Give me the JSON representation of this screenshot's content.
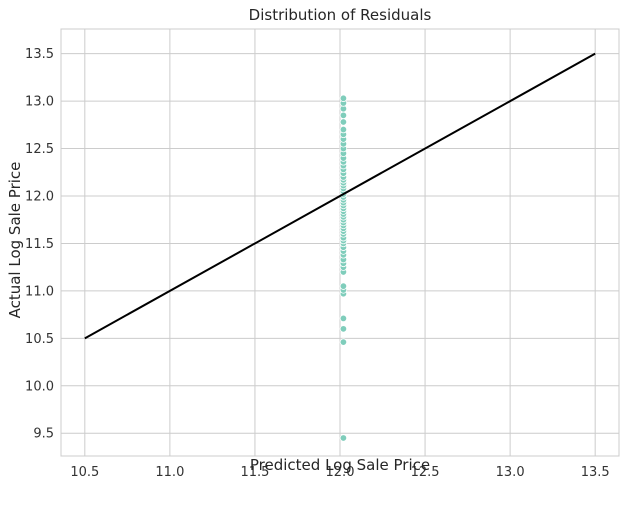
{
  "chart_data": {
    "type": "scatter",
    "title": "Distribution of Residuals",
    "xlabel": "Predicted Log Sale Price",
    "ylabel": "Actual Log Sale Price",
    "xlim": [
      10.36,
      13.64
    ],
    "ylim": [
      9.26,
      13.76
    ],
    "xticks": [
      "10.5",
      "11.0",
      "11.5",
      "12.0",
      "12.5",
      "13.0",
      "13.5"
    ],
    "yticks": [
      "9.5",
      "10.0",
      "10.5",
      "11.0",
      "11.5",
      "12.0",
      "12.5",
      "13.0",
      "13.5"
    ],
    "grid": true,
    "series": [
      {
        "type": "scatter",
        "color": "#7fcdbb",
        "x": [
          12.02,
          12.02,
          12.02,
          12.02,
          12.02,
          12.02,
          12.02,
          12.02,
          12.02,
          12.02,
          12.02,
          12.02,
          12.02,
          12.02,
          12.02,
          12.02,
          12.02,
          12.02,
          12.02,
          12.02,
          12.02,
          12.02,
          12.02,
          12.02,
          12.02,
          12.02,
          12.02,
          12.02,
          12.02,
          12.02,
          12.02,
          12.02,
          12.02,
          12.02,
          12.02,
          12.02,
          12.02,
          12.02,
          12.02,
          12.02,
          12.02,
          12.02,
          12.02,
          12.02,
          12.02,
          12.02,
          12.02,
          12.02,
          12.02,
          12.02,
          12.02,
          12.02,
          12.02,
          12.02
        ],
        "y": [
          9.45,
          10.46,
          10.6,
          10.71,
          10.97,
          11.01,
          11.05,
          11.2,
          11.25,
          11.29,
          11.33,
          11.38,
          11.42,
          11.46,
          11.5,
          11.53,
          11.56,
          11.6,
          11.63,
          11.66,
          11.69,
          11.72,
          11.75,
          11.78,
          11.81,
          11.84,
          11.87,
          11.9,
          11.93,
          11.96,
          11.99,
          12.02,
          12.05,
          12.08,
          12.11,
          12.14,
          12.17,
          12.2,
          12.24,
          12.28,
          12.32,
          12.36,
          12.4,
          12.45,
          12.5,
          12.55,
          12.6,
          12.65,
          12.7,
          12.78,
          12.85,
          12.92,
          12.98,
          13.03
        ]
      },
      {
        "type": "line",
        "color": "#000000",
        "x": [
          10.5,
          13.5
        ],
        "y": [
          10.5,
          13.5
        ]
      }
    ]
  }
}
